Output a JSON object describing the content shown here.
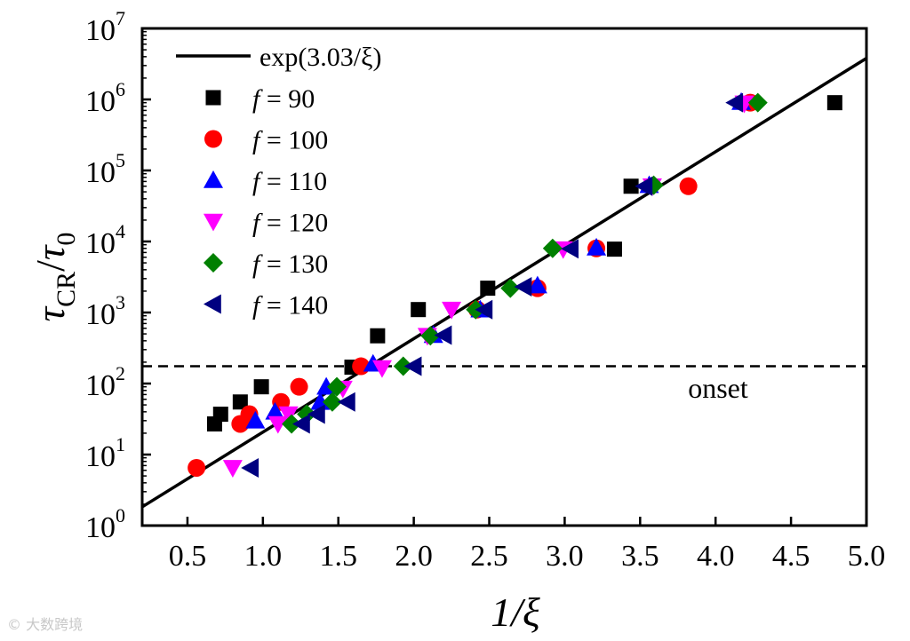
{
  "chart_data": {
    "type": "scatter",
    "x_label": "1/ξ",
    "y_label_parts": {
      "main": "τ",
      "sub_num": "CR",
      "den": "τ",
      "sub_den": "0"
    },
    "x_range": [
      0.2,
      5.0
    ],
    "x_ticks": [
      "0.5",
      "1.0",
      "1.5",
      "2.0",
      "2.5",
      "3.0",
      "3.5",
      "4.0",
      "4.5",
      "5.0"
    ],
    "y_log": true,
    "y_range_exp": [
      0,
      7
    ],
    "y_ticks": [
      {
        "base": "10",
        "exp": "0"
      },
      {
        "base": "10",
        "exp": "1"
      },
      {
        "base": "10",
        "exp": "2"
      },
      {
        "base": "10",
        "exp": "3"
      },
      {
        "base": "10",
        "exp": "4"
      },
      {
        "base": "10",
        "exp": "5"
      },
      {
        "base": "10",
        "exp": "6"
      },
      {
        "base": "10",
        "exp": "7"
      }
    ],
    "fit": {
      "label": "exp(3.03/ξ)",
      "coef": 3.03
    },
    "onset": {
      "label": "onset",
      "y": 175
    },
    "legend_position": "top-left",
    "series": [
      {
        "prefix": "f",
        "rest": " = 90",
        "marker": "square",
        "color": "#000000",
        "points": [
          [
            0.68,
            27
          ],
          [
            0.72,
            37
          ],
          [
            0.85,
            55
          ],
          [
            0.99,
            90
          ],
          [
            1.59,
            170
          ],
          [
            1.76,
            470
          ],
          [
            2.03,
            1100
          ],
          [
            2.49,
            2200
          ],
          [
            3.33,
            7800
          ],
          [
            3.44,
            60000
          ],
          [
            4.79,
            900000
          ]
        ]
      },
      {
        "prefix": "f",
        "rest": " = 100",
        "marker": "circle",
        "color": "#ff0000",
        "points": [
          [
            0.56,
            6.5
          ],
          [
            0.85,
            27
          ],
          [
            0.91,
            37
          ],
          [
            1.12,
            55
          ],
          [
            1.24,
            90
          ],
          [
            1.65,
            175
          ],
          [
            2.42,
            1100
          ],
          [
            2.82,
            2200
          ],
          [
            3.21,
            8000
          ],
          [
            3.82,
            60000
          ],
          [
            4.23,
            900000
          ]
        ]
      },
      {
        "prefix": "f",
        "rest": " = 110",
        "marker": "triangle-up",
        "color": "#0000ff",
        "points": [
          [
            0.95,
            30
          ],
          [
            1.08,
            40
          ],
          [
            1.38,
            55
          ],
          [
            1.42,
            90
          ],
          [
            1.73,
            190
          ],
          [
            2.13,
            480
          ],
          [
            2.44,
            1100
          ],
          [
            2.82,
            2400
          ],
          [
            3.21,
            8200
          ],
          [
            3.56,
            62000
          ],
          [
            4.17,
            920000
          ]
        ]
      },
      {
        "prefix": "f",
        "rest": " = 120",
        "marker": "triangle-down",
        "color": "#ff00ff",
        "points": [
          [
            0.8,
            6.5
          ],
          [
            1.1,
            27
          ],
          [
            1.17,
            37
          ],
          [
            1.53,
            85
          ],
          [
            1.79,
            165
          ],
          [
            2.09,
            470
          ],
          [
            2.25,
            1100
          ],
          [
            2.99,
            7800
          ],
          [
            3.58,
            60000
          ],
          [
            4.19,
            880000
          ]
        ]
      },
      {
        "prefix": "f",
        "rest": " = 130",
        "marker": "diamond",
        "color": "#008000",
        "points": [
          [
            1.19,
            27
          ],
          [
            1.29,
            37
          ],
          [
            1.46,
            55
          ],
          [
            1.49,
            90
          ],
          [
            1.93,
            175
          ],
          [
            2.11,
            470
          ],
          [
            2.41,
            1100
          ],
          [
            2.64,
            2200
          ],
          [
            2.92,
            8000
          ],
          [
            3.59,
            62000
          ],
          [
            4.28,
            900000
          ]
        ]
      },
      {
        "prefix": "f",
        "rest": " = 140",
        "marker": "triangle-left",
        "color": "#000080",
        "points": [
          [
            0.92,
            6.5
          ],
          [
            1.26,
            27
          ],
          [
            1.36,
            37
          ],
          [
            1.56,
            55
          ],
          [
            2.0,
            175
          ],
          [
            2.2,
            480
          ],
          [
            2.47,
            1100
          ],
          [
            2.73,
            2300
          ],
          [
            3.04,
            7900
          ],
          [
            3.53,
            60000
          ],
          [
            4.13,
            900000
          ]
        ]
      }
    ]
  },
  "watermark": "© 大数跨境"
}
